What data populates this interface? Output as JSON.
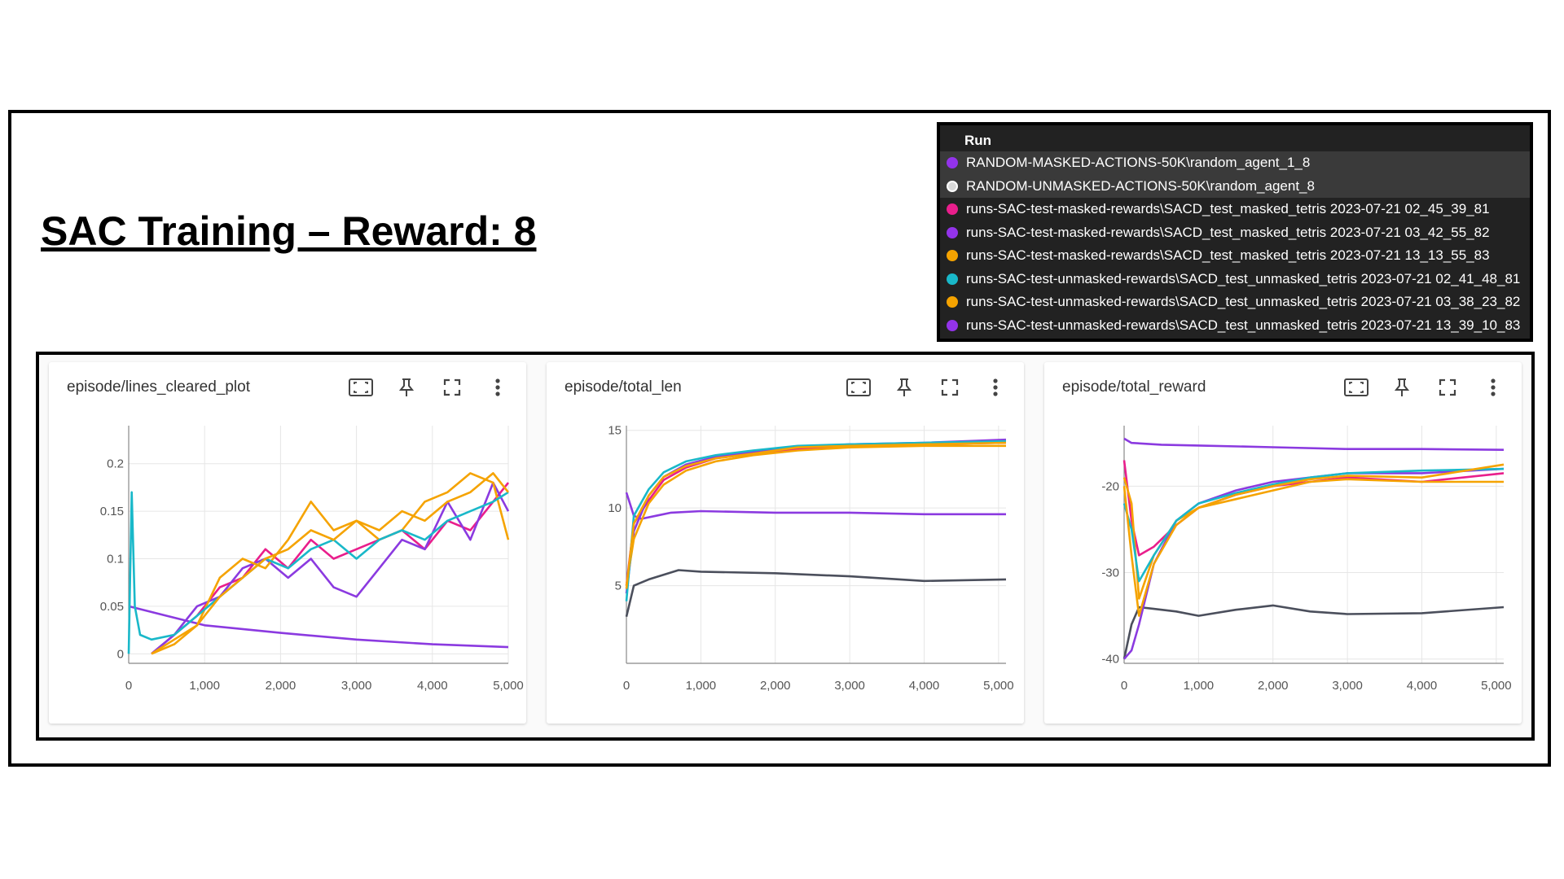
{
  "slide": {
    "title": "SAC Training – Reward: 8"
  },
  "legend": {
    "header": "Run",
    "runs": [
      {
        "name": "RANDOM-MASKED-ACTIONS-50K\\random_agent_1_8",
        "color": "#9333ea"
      },
      {
        "name": "RANDOM-UNMASKED-ACTIONS-50K\\random_agent_8",
        "color": "#ffffff"
      },
      {
        "name": "runs-SAC-test-masked-rewards\\SACD_test_masked_tetris 2023-07-21 02_45_39_81",
        "color": "#e91e8c"
      },
      {
        "name": "runs-SAC-test-masked-rewards\\SACD_test_masked_tetris 2023-07-21 03_42_55_82",
        "color": "#9333ea"
      },
      {
        "name": "runs-SAC-test-masked-rewards\\SACD_test_masked_tetris 2023-07-21 13_13_55_83",
        "color": "#f5a300"
      },
      {
        "name": "runs-SAC-test-unmasked-rewards\\SACD_test_unmasked_tetris 2023-07-21 02_41_48_81",
        "color": "#19b8c9"
      },
      {
        "name": "runs-SAC-test-unmasked-rewards\\SACD_test_unmasked_tetris 2023-07-21 03_38_23_82",
        "color": "#f5a300"
      },
      {
        "name": "runs-SAC-test-unmasked-rewards\\SACD_test_unmasked_tetris 2023-07-21 13_39_10_83",
        "color": "#9333ea"
      }
    ]
  },
  "cards": [
    {
      "title": "episode/lines_cleared_plot"
    },
    {
      "title": "episode/total_len"
    },
    {
      "title": "episode/total_reward"
    }
  ],
  "icons": [
    "fit-to-data-icon",
    "pin-icon",
    "fullscreen-icon",
    "more-vert-icon"
  ],
  "chart_data": [
    {
      "type": "line",
      "title": "episode/lines_cleared_plot",
      "xlim": [
        0,
        5000
      ],
      "ylim": [
        -0.01,
        0.24
      ],
      "x_ticks": [
        {
          "v": 0,
          "label": "0"
        },
        {
          "v": 1000,
          "label": "1,000"
        },
        {
          "v": 2000,
          "label": "2,000"
        },
        {
          "v": 3000,
          "label": "3,000"
        },
        {
          "v": 4000,
          "label": "4,000"
        },
        {
          "v": 5000,
          "label": "5,000"
        }
      ],
      "y_ticks": [
        {
          "v": 0,
          "label": "0"
        },
        {
          "v": 0.05,
          "label": "0.05"
        },
        {
          "v": 0.1,
          "label": "0.1"
        },
        {
          "v": 0.15,
          "label": "0.15"
        },
        {
          "v": 0.2,
          "label": "0.2"
        }
      ],
      "series": [
        {
          "color": "#8b3ae0",
          "x": [
            0,
            500,
            1000,
            2000,
            3000,
            4000,
            5000
          ],
          "y": [
            0.05,
            0.04,
            0.03,
            0.022,
            0.015,
            0.01,
            0.007
          ]
        },
        {
          "color": "#e91e8c",
          "x": [
            300,
            600,
            900,
            1200,
            1500,
            1800,
            2100,
            2400,
            2700,
            3000,
            3300,
            3600,
            3900,
            4200,
            4500,
            4800,
            5000
          ],
          "y": [
            0,
            0.02,
            0.04,
            0.07,
            0.08,
            0.11,
            0.09,
            0.12,
            0.1,
            0.11,
            0.12,
            0.13,
            0.11,
            0.14,
            0.13,
            0.16,
            0.18
          ]
        },
        {
          "color": "#8b3ae0",
          "x": [
            300,
            600,
            900,
            1200,
            1500,
            1800,
            2100,
            2400,
            2700,
            3000,
            3300,
            3600,
            3900,
            4200,
            4500,
            4800,
            5000
          ],
          "y": [
            0,
            0.02,
            0.05,
            0.06,
            0.09,
            0.1,
            0.08,
            0.1,
            0.07,
            0.06,
            0.09,
            0.12,
            0.11,
            0.16,
            0.12,
            0.18,
            0.15
          ]
        },
        {
          "color": "#f5a300",
          "x": [
            300,
            600,
            900,
            1200,
            1500,
            1800,
            2100,
            2400,
            2700,
            3000,
            3300,
            3600,
            3900,
            4200,
            4500,
            4800,
            5000
          ],
          "y": [
            0,
            0.015,
            0.03,
            0.08,
            0.1,
            0.09,
            0.12,
            0.16,
            0.13,
            0.14,
            0.12,
            0.13,
            0.16,
            0.17,
            0.19,
            0.18,
            0.12
          ]
        },
        {
          "color": "#19b8c9",
          "x": [
            0,
            40,
            80,
            150,
            300,
            600,
            900,
            1200,
            1500,
            1800,
            2100,
            2400,
            2700,
            3000,
            3300,
            3600,
            3900,
            4200,
            4500,
            4800,
            5000
          ],
          "y": [
            0,
            0.17,
            0.05,
            0.02,
            0.015,
            0.02,
            0.04,
            0.06,
            0.08,
            0.1,
            0.09,
            0.11,
            0.12,
            0.1,
            0.12,
            0.13,
            0.12,
            0.14,
            0.15,
            0.16,
            0.17
          ]
        },
        {
          "color": "#f5a300",
          "x": [
            300,
            600,
            900,
            1200,
            1500,
            1800,
            2100,
            2400,
            2700,
            3000,
            3300,
            3600,
            3900,
            4200,
            4500,
            4800,
            5000
          ],
          "y": [
            0,
            0.01,
            0.03,
            0.06,
            0.08,
            0.1,
            0.11,
            0.13,
            0.12,
            0.14,
            0.13,
            0.15,
            0.14,
            0.16,
            0.17,
            0.19,
            0.17
          ]
        }
      ]
    },
    {
      "type": "line",
      "title": "episode/total_len",
      "xlim": [
        0,
        5100
      ],
      "ylim": [
        0,
        15.3
      ],
      "x_ticks": [
        {
          "v": 0,
          "label": "0"
        },
        {
          "v": 1000,
          "label": "1,000"
        },
        {
          "v": 2000,
          "label": "2,000"
        },
        {
          "v": 3000,
          "label": "3,000"
        },
        {
          "v": 4000,
          "label": "4,000"
        },
        {
          "v": 5000,
          "label": "5,000"
        }
      ],
      "y_ticks": [
        {
          "v": 5,
          "label": "5"
        },
        {
          "v": 10,
          "label": "10"
        },
        {
          "v": 15,
          "label": "15"
        }
      ],
      "series": [
        {
          "color": "#8b3ae0",
          "x": [
            0,
            100,
            200,
            400,
            600,
            1000,
            2000,
            3000,
            4000,
            5100
          ],
          "y": [
            11,
            9.5,
            9.3,
            9.5,
            9.7,
            9.8,
            9.7,
            9.7,
            9.6,
            9.6
          ]
        },
        {
          "color": "#4b4f5c",
          "x": [
            0,
            100,
            300,
            700,
            1000,
            2000,
            3000,
            4000,
            5100
          ],
          "y": [
            3,
            5,
            5.4,
            6,
            5.9,
            5.8,
            5.6,
            5.3,
            5.4
          ]
        },
        {
          "color": "#e91e8c",
          "x": [
            0,
            100,
            300,
            500,
            800,
            1200,
            1700,
            2300,
            3000,
            4000,
            5100
          ],
          "y": [
            5,
            9,
            10.5,
            11.8,
            12.6,
            13.2,
            13.5,
            13.8,
            14,
            14.1,
            14.2
          ]
        },
        {
          "color": "#8b3ae0",
          "x": [
            0,
            100,
            300,
            500,
            800,
            1200,
            1700,
            2300,
            3000,
            4000,
            5100
          ],
          "y": [
            4.5,
            8.5,
            10.8,
            12,
            12.8,
            13.3,
            13.6,
            13.9,
            14.1,
            14.2,
            14.4
          ]
        },
        {
          "color": "#f5a300",
          "x": [
            0,
            100,
            300,
            500,
            800,
            1200,
            1700,
            2300,
            3000,
            4000,
            5100
          ],
          "y": [
            5,
            8,
            10.3,
            11.5,
            12.4,
            13,
            13.4,
            13.7,
            13.9,
            14,
            14
          ]
        },
        {
          "color": "#19b8c9",
          "x": [
            0,
            100,
            300,
            500,
            800,
            1200,
            1700,
            2300,
            3000,
            4000,
            5100
          ],
          "y": [
            4,
            9.5,
            11.2,
            12.3,
            13,
            13.4,
            13.7,
            14,
            14.1,
            14.2,
            14.3
          ]
        },
        {
          "color": "#f5a300",
          "x": [
            0,
            100,
            300,
            500,
            800,
            1200,
            1700,
            2300,
            3000,
            4000,
            5100
          ],
          "y": [
            4.8,
            9,
            10.8,
            12,
            12.7,
            13.2,
            13.5,
            13.9,
            14,
            14.1,
            14.2
          ]
        }
      ]
    },
    {
      "type": "line",
      "title": "episode/total_reward",
      "xlim": [
        0,
        5100
      ],
      "ylim": [
        -40.5,
        -13
      ],
      "x_ticks": [
        {
          "v": 0,
          "label": "0"
        },
        {
          "v": 1000,
          "label": "1,000"
        },
        {
          "v": 2000,
          "label": "2,000"
        },
        {
          "v": 3000,
          "label": "3,000"
        },
        {
          "v": 4000,
          "label": "4,000"
        },
        {
          "v": 5000,
          "label": "5,000"
        }
      ],
      "y_ticks": [
        {
          "v": -20,
          "label": "-20"
        },
        {
          "v": -30,
          "label": "-30"
        },
        {
          "v": -40,
          "label": "-40"
        }
      ],
      "series": [
        {
          "color": "#8b3ae0",
          "x": [
            0,
            100,
            500,
            1000,
            2000,
            3000,
            4000,
            5100
          ],
          "y": [
            -14.5,
            -15,
            -15.2,
            -15.3,
            -15.5,
            -15.7,
            -15.7,
            -15.8
          ]
        },
        {
          "color": "#4b4f5c",
          "x": [
            0,
            100,
            200,
            400,
            700,
            1000,
            1500,
            2000,
            2500,
            3000,
            4000,
            5100
          ],
          "y": [
            -40,
            -36,
            -34,
            -34.2,
            -34.5,
            -35,
            -34.3,
            -33.8,
            -34.5,
            -34.8,
            -34.7,
            -34
          ]
        },
        {
          "color": "#e91e8c",
          "x": [
            0,
            100,
            200,
            400,
            700,
            1000,
            1500,
            2000,
            2500,
            3000,
            4000,
            5100
          ],
          "y": [
            -17,
            -24,
            -28,
            -27,
            -24.5,
            -22.5,
            -21,
            -20,
            -19.5,
            -19,
            -19.5,
            -18.5
          ]
        },
        {
          "color": "#8b3ae0",
          "x": [
            0,
            100,
            200,
            400,
            700,
            1000,
            1500,
            2000,
            2500,
            3000,
            4000,
            5100
          ],
          "y": [
            -40,
            -39,
            -36,
            -29,
            -24,
            -22,
            -20.5,
            -19.5,
            -19,
            -18.5,
            -18.5,
            -18
          ]
        },
        {
          "color": "#f5a300",
          "x": [
            0,
            100,
            200,
            400,
            700,
            1000,
            1500,
            2000,
            2500,
            3000,
            4000,
            5100
          ],
          "y": [
            -19,
            -22,
            -33,
            -28,
            -24,
            -22.5,
            -21.5,
            -20.5,
            -19.5,
            -19.2,
            -19.5,
            -19.5
          ]
        },
        {
          "color": "#19b8c9",
          "x": [
            0,
            100,
            200,
            400,
            700,
            1000,
            1500,
            2000,
            2500,
            3000,
            4000,
            5100
          ],
          "y": [
            -22,
            -25,
            -31,
            -28,
            -24,
            -22,
            -20.8,
            -19.8,
            -19,
            -18.5,
            -18.2,
            -18
          ]
        },
        {
          "color": "#f5a300",
          "x": [
            0,
            100,
            200,
            400,
            700,
            1000,
            1500,
            2000,
            2500,
            3000,
            4000,
            5100
          ],
          "y": [
            -20,
            -28,
            -35,
            -29,
            -24.5,
            -22.5,
            -21,
            -20,
            -19.2,
            -18.8,
            -19,
            -17.5
          ]
        }
      ]
    }
  ]
}
